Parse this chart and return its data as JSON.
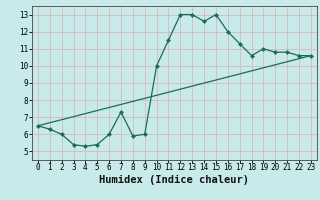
{
  "title": "",
  "xlabel": "Humidex (Indice chaleur)",
  "ylabel": "",
  "background_color": "#c8eaea",
  "grid_color": "#d8b8b8",
  "line_color": "#1a6b5a",
  "xlim": [
    -0.5,
    23.5
  ],
  "ylim": [
    4.5,
    13.5
  ],
  "xticks": [
    0,
    1,
    2,
    3,
    4,
    5,
    6,
    7,
    8,
    9,
    10,
    11,
    12,
    13,
    14,
    15,
    16,
    17,
    18,
    19,
    20,
    21,
    22,
    23
  ],
  "yticks": [
    5,
    6,
    7,
    8,
    9,
    10,
    11,
    12,
    13
  ],
  "curve1_x": [
    0,
    1,
    2,
    3,
    4,
    5,
    6,
    7,
    8,
    9,
    10,
    11,
    12,
    13,
    14,
    15,
    16,
    17,
    18,
    19,
    20,
    21,
    22,
    23
  ],
  "curve1_y": [
    6.5,
    6.3,
    6.0,
    5.4,
    5.3,
    5.4,
    6.0,
    7.3,
    5.9,
    6.0,
    10.0,
    11.5,
    13.0,
    13.0,
    12.6,
    13.0,
    12.0,
    11.3,
    10.6,
    11.0,
    10.8,
    10.8,
    10.6,
    10.6
  ],
  "curve2_x": [
    0,
    23
  ],
  "curve2_y": [
    6.5,
    10.6
  ],
  "marker_size": 2.5,
  "font_size_ticks": 5.5,
  "font_size_xlabel": 7.5
}
